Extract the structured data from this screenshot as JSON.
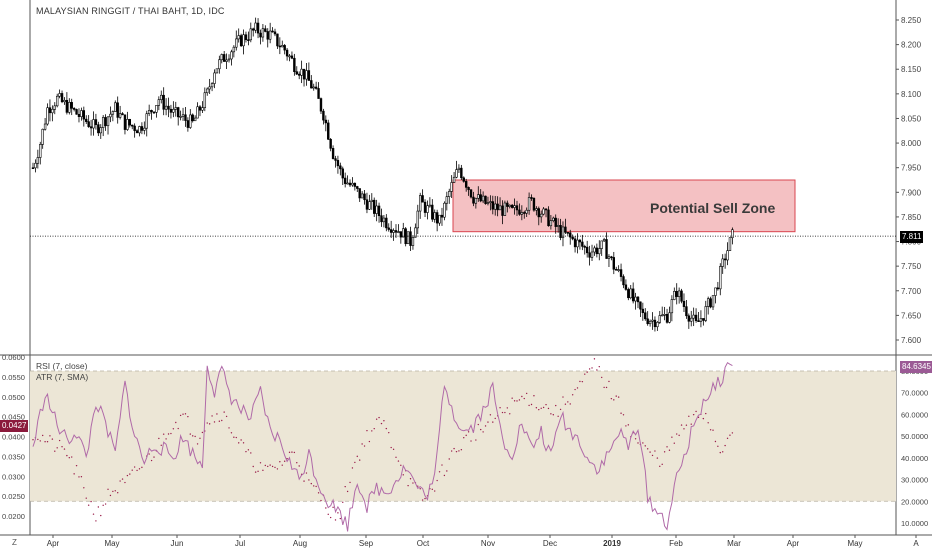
{
  "header": {
    "title": "MALAYSIAN RINGGIT / THAI BAHT, 1D, IDC"
  },
  "annotations": {
    "zone_label": "Potential Sell Zone"
  },
  "indicators": {
    "rsi_label": "RSI (7, close)",
    "atr_label": "ATR (7, SMA)"
  },
  "badges": {
    "price_last": "7.811",
    "atr_last": "0.0427",
    "rsi_last": "84.6345"
  },
  "corners": {
    "bottom_left": "Z",
    "bottom_right": "A"
  },
  "colors": {
    "candle": "#000000",
    "zone_fill": "#f2b6b8",
    "zone_border": "#d9454f",
    "rsi_line": "#b06aa8",
    "atr_dots": "#9a1d4a",
    "rsi_band": "#ece6d6",
    "price_badge": "#000000",
    "atr_badge": "#8b1a3c",
    "rsi_badge": "#9b5a95"
  },
  "chart_data": [
    {
      "type": "candlestick",
      "title": "MALAYSIAN RINGGIT / THAI BAHT, 1D, IDC",
      "x_tick_labels": [
        "Apr",
        "May",
        "Jun",
        "Jul",
        "Aug",
        "Sep",
        "Oct",
        "Nov",
        "Dec",
        "2019",
        "Feb",
        "Mar",
        "Apr",
        "May",
        "A"
      ],
      "y_tick_labels": [
        "8.250",
        "8.200",
        "8.150",
        "8.100",
        "8.050",
        "8.000",
        "7.950",
        "7.900",
        "7.850",
        "7.800",
        "7.750",
        "7.700",
        "7.650",
        "7.600"
      ],
      "ylim": [
        7.585,
        8.27
      ],
      "last_price": 7.811,
      "close_keypoints": [
        [
          0,
          7.95
        ],
        [
          3,
          8.0
        ],
        [
          6,
          8.07
        ],
        [
          10,
          8.09
        ],
        [
          18,
          8.06
        ],
        [
          26,
          8.03
        ],
        [
          34,
          8.07
        ],
        [
          38,
          8.04
        ],
        [
          44,
          8.03
        ],
        [
          52,
          8.09
        ],
        [
          58,
          8.06
        ],
        [
          66,
          8.04
        ],
        [
          72,
          8.1
        ],
        [
          75,
          8.15
        ],
        [
          80,
          8.18
        ],
        [
          86,
          8.21
        ],
        [
          92,
          8.23
        ],
        [
          98,
          8.22
        ],
        [
          104,
          8.19
        ],
        [
          108,
          8.16
        ],
        [
          112,
          8.14
        ],
        [
          116,
          8.11
        ],
        [
          120,
          8.06
        ],
        [
          124,
          7.98
        ],
        [
          128,
          7.93
        ],
        [
          134,
          7.9
        ],
        [
          140,
          7.87
        ],
        [
          146,
          7.84
        ],
        [
          152,
          7.82
        ],
        [
          156,
          7.8
        ],
        [
          160,
          7.88
        ],
        [
          164,
          7.86
        ],
        [
          168,
          7.84
        ],
        [
          172,
          7.9
        ],
        [
          176,
          7.95
        ],
        [
          182,
          7.89
        ],
        [
          190,
          7.87
        ],
        [
          198,
          7.86
        ],
        [
          206,
          7.88
        ],
        [
          212,
          7.85
        ],
        [
          218,
          7.82
        ],
        [
          224,
          7.8
        ],
        [
          230,
          7.78
        ],
        [
          236,
          7.79
        ],
        [
          240,
          7.75
        ],
        [
          244,
          7.72
        ],
        [
          248,
          7.68
        ],
        [
          252,
          7.65
        ],
        [
          256,
          7.64
        ],
        [
          262,
          7.65
        ],
        [
          266,
          7.7
        ],
        [
          270,
          7.66
        ],
        [
          274,
          7.63
        ],
        [
          278,
          7.66
        ],
        [
          282,
          7.7
        ],
        [
          286,
          7.77
        ],
        [
          289,
          7.811
        ]
      ],
      "sell_zone": {
        "label": "Potential Sell Zone",
        "y_low": 7.82,
        "y_high": 7.925
      }
    },
    {
      "type": "line",
      "title": "RSI (7, close)",
      "y_tick_labels": [
        "80.0000",
        "70.0000",
        "60.0000",
        "50.0000",
        "40.0000",
        "30.0000",
        "20.0000",
        "10.0000"
      ],
      "ylim": [
        2,
        88
      ],
      "band": [
        20,
        80
      ],
      "last_value": 84.6345,
      "keypoints": [
        [
          0,
          45
        ],
        [
          5,
          70
        ],
        [
          10,
          55
        ],
        [
          14,
          48
        ],
        [
          18,
          52
        ],
        [
          22,
          40
        ],
        [
          26,
          66
        ],
        [
          30,
          55
        ],
        [
          34,
          42
        ],
        [
          38,
          74
        ],
        [
          42,
          50
        ],
        [
          46,
          38
        ],
        [
          50,
          46
        ],
        [
          54,
          44
        ],
        [
          58,
          40
        ],
        [
          62,
          50
        ],
        [
          66,
          42
        ],
        [
          70,
          36
        ],
        [
          72,
          84
        ],
        [
          75,
          70
        ],
        [
          78,
          80
        ],
        [
          82,
          68
        ],
        [
          86,
          62
        ],
        [
          90,
          58
        ],
        [
          94,
          70
        ],
        [
          98,
          52
        ],
        [
          102,
          48
        ],
        [
          106,
          38
        ],
        [
          110,
          30
        ],
        [
          114,
          42
        ],
        [
          118,
          28
        ],
        [
          122,
          20
        ],
        [
          126,
          16
        ],
        [
          130,
          9
        ],
        [
          134,
          30
        ],
        [
          138,
          18
        ],
        [
          142,
          26
        ],
        [
          146,
          24
        ],
        [
          150,
          30
        ],
        [
          154,
          36
        ],
        [
          158,
          28
        ],
        [
          162,
          22
        ],
        [
          166,
          30
        ],
        [
          170,
          75
        ],
        [
          174,
          60
        ],
        [
          178,
          52
        ],
        [
          182,
          55
        ],
        [
          186,
          62
        ],
        [
          190,
          72
        ],
        [
          194,
          48
        ],
        [
          198,
          42
        ],
        [
          202,
          56
        ],
        [
          206,
          44
        ],
        [
          210,
          52
        ],
        [
          214,
          40
        ],
        [
          218,
          60
        ],
        [
          222,
          52
        ],
        [
          226,
          48
        ],
        [
          230,
          38
        ],
        [
          234,
          35
        ],
        [
          238,
          42
        ],
        [
          242,
          52
        ],
        [
          246,
          45
        ],
        [
          250,
          56
        ],
        [
          254,
          22
        ],
        [
          258,
          15
        ],
        [
          262,
          10
        ],
        [
          266,
          30
        ],
        [
          270,
          44
        ],
        [
          274,
          58
        ],
        [
          278,
          68
        ],
        [
          282,
          72
        ],
        [
          286,
          80
        ],
        [
          289,
          84.6345
        ]
      ]
    },
    {
      "type": "scatter",
      "title": "ATR (7, SMA)",
      "y_tick_labels": [
        "0.0600",
        "0.0550",
        "0.0500",
        "0.0450",
        "0.0400",
        "0.0350",
        "0.0300",
        "0.0250",
        "0.0200"
      ],
      "ylim": [
        0.0178,
        0.0608
      ],
      "last_value": 0.0427,
      "keypoints": [
        [
          0,
          0.041
        ],
        [
          8,
          0.038
        ],
        [
          14,
          0.036
        ],
        [
          20,
          0.028
        ],
        [
          26,
          0.02
        ],
        [
          32,
          0.026
        ],
        [
          38,
          0.028
        ],
        [
          44,
          0.032
        ],
        [
          50,
          0.036
        ],
        [
          56,
          0.042
        ],
        [
          62,
          0.045
        ],
        [
          68,
          0.04
        ],
        [
          72,
          0.044
        ],
        [
          78,
          0.046
        ],
        [
          84,
          0.04
        ],
        [
          90,
          0.034
        ],
        [
          96,
          0.031
        ],
        [
          102,
          0.033
        ],
        [
          108,
          0.036
        ],
        [
          114,
          0.028
        ],
        [
          120,
          0.024
        ],
        [
          126,
          0.019
        ],
        [
          132,
          0.032
        ],
        [
          138,
          0.04
        ],
        [
          144,
          0.044
        ],
        [
          150,
          0.036
        ],
        [
          156,
          0.028
        ],
        [
          162,
          0.024
        ],
        [
          168,
          0.03
        ],
        [
          174,
          0.036
        ],
        [
          180,
          0.04
        ],
        [
          186,
          0.042
        ],
        [
          192,
          0.045
        ],
        [
          198,
          0.048
        ],
        [
          204,
          0.05
        ],
        [
          210,
          0.048
        ],
        [
          216,
          0.046
        ],
        [
          222,
          0.05
        ],
        [
          228,
          0.054
        ],
        [
          232,
          0.058
        ],
        [
          236,
          0.054
        ],
        [
          240,
          0.05
        ],
        [
          244,
          0.046
        ],
        [
          248,
          0.04
        ],
        [
          254,
          0.036
        ],
        [
          260,
          0.034
        ],
        [
          266,
          0.04
        ],
        [
          272,
          0.044
        ],
        [
          278,
          0.046
        ],
        [
          284,
          0.036
        ],
        [
          289,
          0.0427
        ]
      ]
    }
  ]
}
